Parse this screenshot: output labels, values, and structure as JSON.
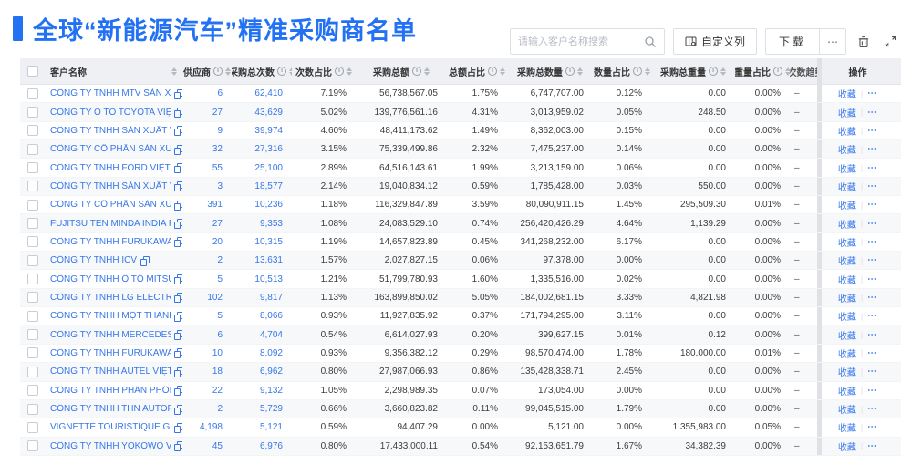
{
  "page": {
    "title": "全球“新能源汽车”精准采购商名单"
  },
  "toolbar": {
    "search_placeholder": "请输入客户名称搜索",
    "custom_columns_label": "自定义列",
    "download_label": "下载",
    "download_more_label": "⋯"
  },
  "table": {
    "columns": [
      {
        "key": "name",
        "label": "客户名称",
        "info": false,
        "sort": true
      },
      {
        "key": "supplier",
        "label": "供应商",
        "info": true,
        "sort": true
      },
      {
        "key": "total_count",
        "label": "采购总次数",
        "info": true,
        "sort": true
      },
      {
        "key": "count_pct",
        "label": "次数占比",
        "info": true,
        "sort": true
      },
      {
        "key": "total_amount",
        "label": "采购总额",
        "info": true,
        "sort": true
      },
      {
        "key": "amount_pct",
        "label": "总额占比",
        "info": true,
        "sort": true
      },
      {
        "key": "total_qty",
        "label": "采购总数量",
        "info": true,
        "sort": true
      },
      {
        "key": "qty_pct",
        "label": "数量占比",
        "info": true,
        "sort": true
      },
      {
        "key": "total_weight",
        "label": "采购总重量",
        "info": true,
        "sort": true
      },
      {
        "key": "weight_pct",
        "label": "重量占比",
        "info": true,
        "sort": true
      },
      {
        "key": "trend",
        "label": "次数趋势",
        "info": false,
        "sort": false
      },
      {
        "key": "action",
        "label": "操作",
        "info": false,
        "sort": false
      }
    ],
    "action": {
      "favorite": "收藏",
      "more": "⋯"
    },
    "rows": [
      {
        "name": "CÔNG TY TNHH MTV SẢN XUẤ...",
        "supplier": "6",
        "total_count": "62,410",
        "count_pct": "7.19%",
        "total_amount": "56,738,567.05",
        "amount_pct": "1.75%",
        "total_qty": "6,747,707.00",
        "qty_pct": "0.12%",
        "total_weight": "0.00",
        "weight_pct": "0.00%",
        "trend": "–"
      },
      {
        "name": "CÔNG TY Ô TÔ TOYOTA VIỆT ...",
        "supplier": "27",
        "total_count": "43,629",
        "count_pct": "5.02%",
        "total_amount": "139,776,561.16",
        "amount_pct": "4.31%",
        "total_qty": "3,013,959.02",
        "qty_pct": "0.05%",
        "total_weight": "248.50",
        "weight_pct": "0.00%",
        "trend": "–"
      },
      {
        "name": "CÔNG TY TNHH SẢN XUẤT VÀ ...",
        "supplier": "9",
        "total_count": "39,974",
        "count_pct": "4.60%",
        "total_amount": "48,411,173.62",
        "amount_pct": "1.49%",
        "total_qty": "8,362,003.00",
        "qty_pct": "0.15%",
        "total_weight": "0.00",
        "weight_pct": "0.00%",
        "trend": "–"
      },
      {
        "name": "CÔNG TY CỔ PHẦN SẢN XUẤT...",
        "supplier": "32",
        "total_count": "27,316",
        "count_pct": "3.15%",
        "total_amount": "75,339,499.86",
        "amount_pct": "2.32%",
        "total_qty": "7,475,237.00",
        "qty_pct": "0.14%",
        "total_weight": "0.00",
        "weight_pct": "0.00%",
        "trend": "–"
      },
      {
        "name": "CÔNG TY TNHH FORD VIỆT NAM",
        "supplier": "55",
        "total_count": "25,100",
        "count_pct": "2.89%",
        "total_amount": "64,516,143.61",
        "amount_pct": "1.99%",
        "total_qty": "3,213,159.00",
        "qty_pct": "0.06%",
        "total_weight": "0.00",
        "weight_pct": "0.00%",
        "trend": "–"
      },
      {
        "name": "CÔNG TY TNHH SẢN XUẤT VÀ ...",
        "supplier": "3",
        "total_count": "18,577",
        "count_pct": "2.14%",
        "total_amount": "19,040,834.12",
        "amount_pct": "0.59%",
        "total_qty": "1,785,428.00",
        "qty_pct": "0.03%",
        "total_weight": "550.00",
        "weight_pct": "0.00%",
        "trend": "–"
      },
      {
        "name": "CÔNG TY CỔ PHẦN SẢN XUẤT...",
        "supplier": "391",
        "total_count": "10,236",
        "count_pct": "1.18%",
        "total_amount": "116,329,847.89",
        "amount_pct": "3.59%",
        "total_qty": "80,090,911.15",
        "qty_pct": "1.45%",
        "total_weight": "295,509.30",
        "weight_pct": "0.01%",
        "trend": "–"
      },
      {
        "name": "FUJITSU TEN MINDA INDIA PVT...",
        "supplier": "27",
        "total_count": "9,353",
        "count_pct": "1.08%",
        "total_amount": "24,083,529.10",
        "amount_pct": "0.74%",
        "total_qty": "256,420,426.29",
        "qty_pct": "4.64%",
        "total_weight": "1,139.29",
        "weight_pct": "0.00%",
        "trend": "–"
      },
      {
        "name": "CÔNG TY TNHH FURUKAWA A...",
        "supplier": "20",
        "total_count": "10,315",
        "count_pct": "1.19%",
        "total_amount": "14,657,823.89",
        "amount_pct": "0.45%",
        "total_qty": "341,268,232.00",
        "qty_pct": "6.17%",
        "total_weight": "0.00",
        "weight_pct": "0.00%",
        "trend": "–"
      },
      {
        "name": "CÔNG TY TNHH ICV",
        "supplier": "2",
        "total_count": "13,631",
        "count_pct": "1.57%",
        "total_amount": "2,027,827.15",
        "amount_pct": "0.06%",
        "total_qty": "97,378.00",
        "qty_pct": "0.00%",
        "total_weight": "0.00",
        "weight_pct": "0.00%",
        "trend": "–"
      },
      {
        "name": "CÔNG TY TNHH Ô TÔ MITSUBI...",
        "supplier": "5",
        "total_count": "10,513",
        "count_pct": "1.21%",
        "total_amount": "51,799,780.93",
        "amount_pct": "1.60%",
        "total_qty": "1,335,516.00",
        "qty_pct": "0.02%",
        "total_weight": "0.00",
        "weight_pct": "0.00%",
        "trend": "–"
      },
      {
        "name": "CÔNG TY TNHH LG ELECTRON...",
        "supplier": "102",
        "total_count": "9,817",
        "count_pct": "1.13%",
        "total_amount": "163,899,850.02",
        "amount_pct": "5.05%",
        "total_qty": "184,002,681.15",
        "qty_pct": "3.33%",
        "total_weight": "4,821.98",
        "weight_pct": "0.00%",
        "trend": "–"
      },
      {
        "name": "CÔNG TY TNHH MỘT THÀNH V...",
        "supplier": "5",
        "total_count": "8,066",
        "count_pct": "0.93%",
        "total_amount": "11,927,835.92",
        "amount_pct": "0.37%",
        "total_qty": "171,794,295.00",
        "qty_pct": "3.11%",
        "total_weight": "0.00",
        "weight_pct": "0.00%",
        "trend": "–"
      },
      {
        "name": "CÔNG TY TNHH MERCEDES-B...",
        "supplier": "6",
        "total_count": "4,704",
        "count_pct": "0.54%",
        "total_amount": "6,614,027.93",
        "amount_pct": "0.20%",
        "total_qty": "399,627.15",
        "qty_pct": "0.01%",
        "total_weight": "0.12",
        "weight_pct": "0.00%",
        "trend": "–"
      },
      {
        "name": "CÔNG TY TNHH FURUKAWA A...",
        "supplier": "10",
        "total_count": "8,092",
        "count_pct": "0.93%",
        "total_amount": "9,356,382.12",
        "amount_pct": "0.29%",
        "total_qty": "98,570,474.00",
        "qty_pct": "1.78%",
        "total_weight": "180,000.00",
        "weight_pct": "0.01%",
        "trend": "–"
      },
      {
        "name": "CÔNG TY TNHH AUTEL VIỆT N...",
        "supplier": "18",
        "total_count": "6,962",
        "count_pct": "0.80%",
        "total_amount": "27,987,066.93",
        "amount_pct": "0.86%",
        "total_qty": "135,428,338.71",
        "qty_pct": "2.45%",
        "total_weight": "0.00",
        "weight_pct": "0.00%",
        "trend": "–"
      },
      {
        "name": "CÔNG TY TNHH PHÂN PHỐI T...",
        "supplier": "22",
        "total_count": "9,132",
        "count_pct": "1.05%",
        "total_amount": "2,298,989.35",
        "amount_pct": "0.07%",
        "total_qty": "173,054.00",
        "qty_pct": "0.00%",
        "total_weight": "0.00",
        "weight_pct": "0.00%",
        "trend": "–"
      },
      {
        "name": "CÔNG TY TNHH THN AUTOPAR...",
        "supplier": "2",
        "total_count": "5,729",
        "count_pct": "0.66%",
        "total_amount": "3,660,823.82",
        "amount_pct": "0.11%",
        "total_qty": "99,045,515.00",
        "qty_pct": "1.79%",
        "total_weight": "0.00",
        "weight_pct": "0.00%",
        "trend": "–"
      },
      {
        "name": "VIGNETTE TOURISTIQUE G UNI...",
        "supplier": "4,198",
        "total_count": "5,121",
        "count_pct": "0.59%",
        "total_amount": "94,407.29",
        "amount_pct": "0.00%",
        "total_qty": "5,121.00",
        "qty_pct": "0.00%",
        "total_weight": "1,355,983.00",
        "weight_pct": "0.05%",
        "trend": "–"
      },
      {
        "name": "CÔNG TY TNHH YOKOWO VIỆT...",
        "supplier": "45",
        "total_count": "6,976",
        "count_pct": "0.80%",
        "total_amount": "17,433,000.11",
        "amount_pct": "0.54%",
        "total_qty": "92,153,651.79",
        "qty_pct": "1.67%",
        "total_weight": "34,382.39",
        "weight_pct": "0.00%",
        "trend": "–"
      }
    ]
  },
  "colors": {
    "accent_blue": "#2472f4",
    "link_blue": "#3676e8",
    "header_bg": "#eef0f4",
    "stripe_bg": "#f7f8fa"
  }
}
